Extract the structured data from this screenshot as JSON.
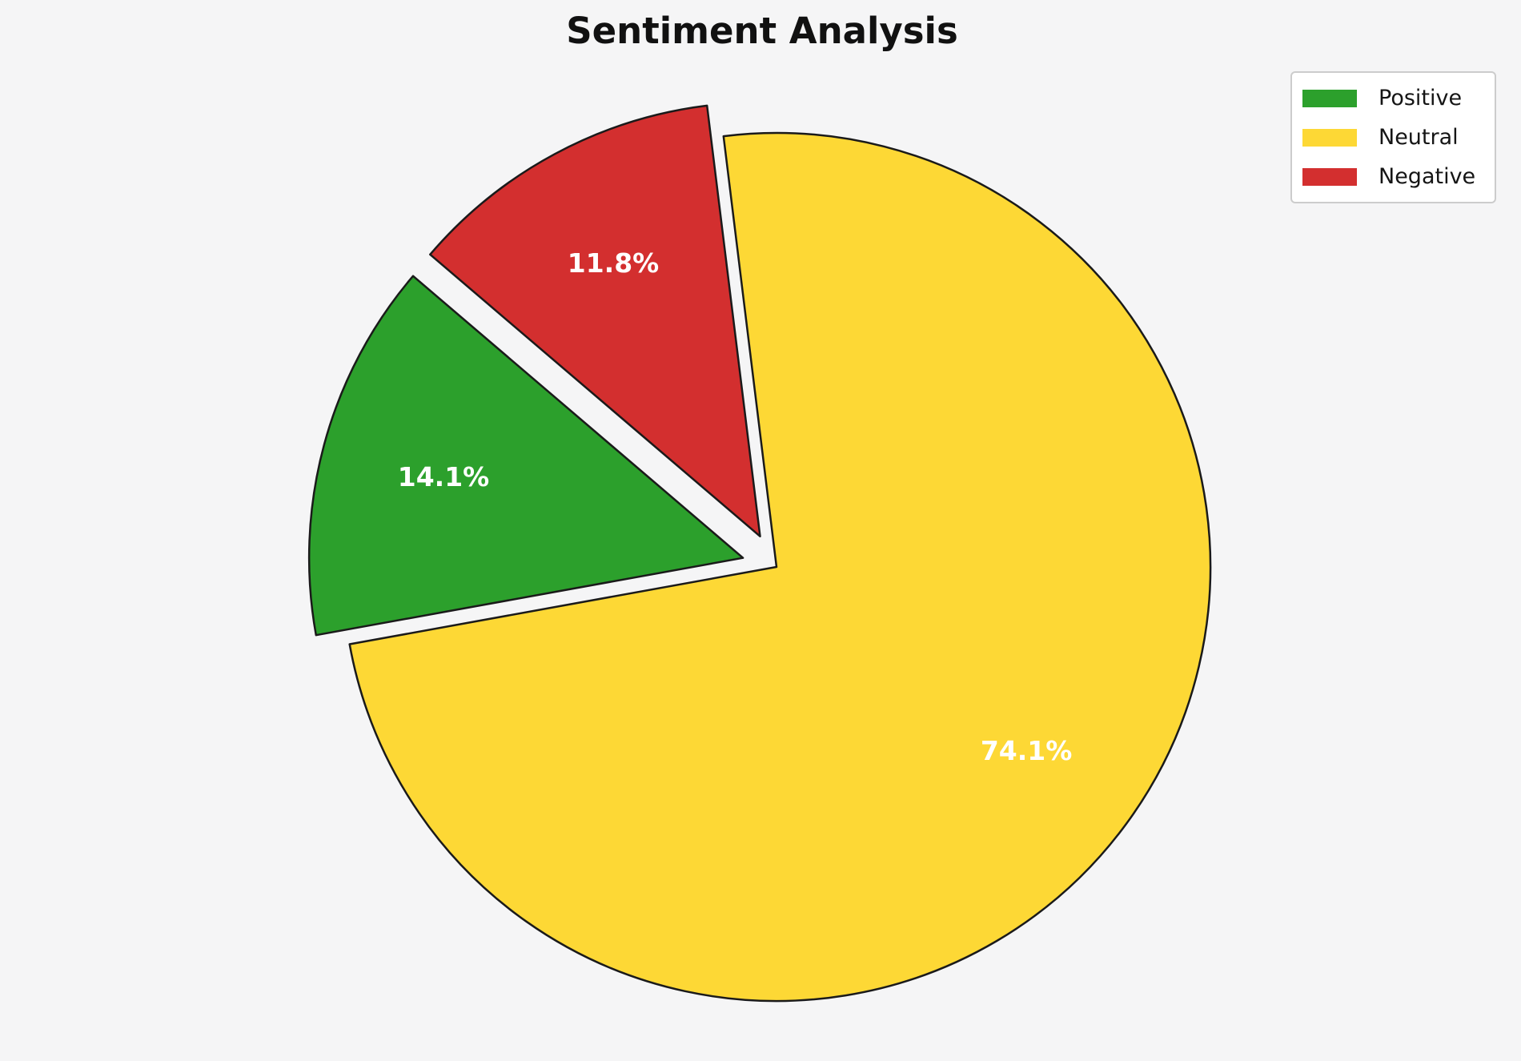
{
  "figure": {
    "background_color": "#f5f5f6",
    "text_color": "#111111"
  },
  "chart_data": {
    "type": "pie",
    "title": "Sentiment Analysis",
    "legend_position": "upper right",
    "edge_color": "#1a1a1a",
    "pct_label_color": "#ffffff",
    "start_angle_deg": 139.5,
    "counterclockwise": true,
    "slices": [
      {
        "label": "Positive",
        "value": 14.1,
        "pct_label": "14.1%",
        "color": "#2ca02c",
        "explode": 0.08
      },
      {
        "label": "Neutral",
        "value": 74.1,
        "pct_label": "74.1%",
        "color": "#fdd835",
        "explode": 0
      },
      {
        "label": "Negative",
        "value": 11.8,
        "pct_label": "11.8%",
        "color": "#d32f2f",
        "explode": 0.08
      }
    ]
  }
}
